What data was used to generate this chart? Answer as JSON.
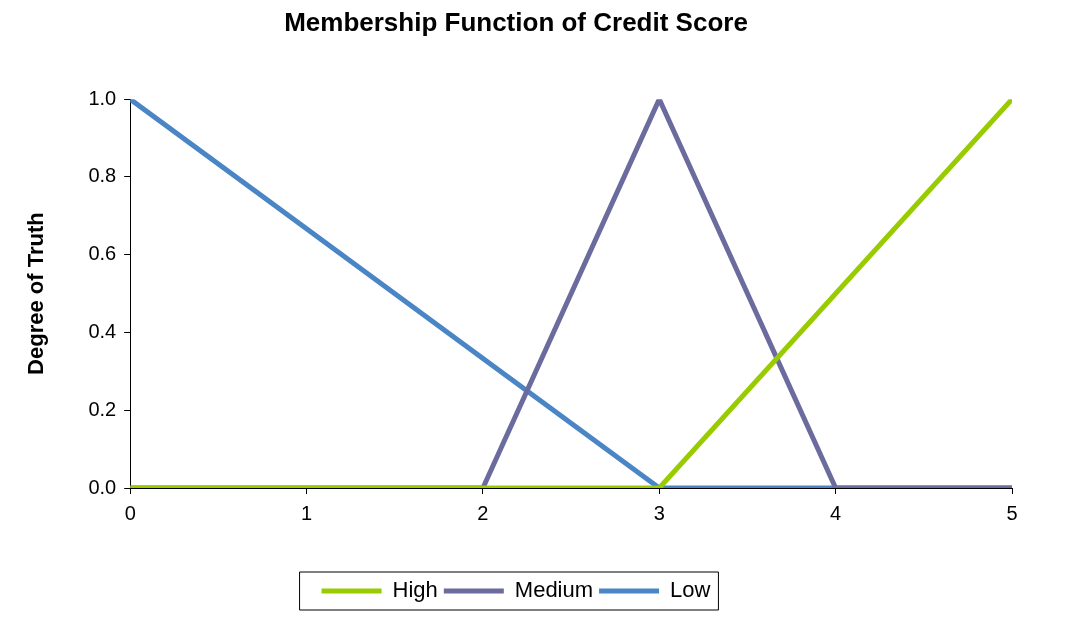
{
  "chart_data": {
    "type": "line",
    "title": "Membership Function of Credit Score",
    "ylabel": "Degree of Truth",
    "xlim": [
      0,
      5
    ],
    "xticks": [
      0,
      1,
      2,
      3,
      4,
      5
    ],
    "ylim": [
      0,
      1
    ],
    "yticks": [
      {
        "value": 0,
        "label": "0.0"
      },
      {
        "value": 0.2,
        "label": "0.2"
      },
      {
        "value": 0.4,
        "label": "0.4"
      },
      {
        "value": 0.6,
        "label": "0.6"
      },
      {
        "value": 0.8,
        "label": "0.8"
      },
      {
        "value": 1,
        "label": "1.0"
      }
    ],
    "grid": false,
    "legend": "bottom",
    "marker": "none",
    "line_style": "solid",
    "series": [
      {
        "name": "High",
        "color": "#99cc00",
        "x": [
          0,
          3,
          5
        ],
        "values": [
          0,
          0,
          1
        ]
      },
      {
        "name": "Medium",
        "color": "#6b6b9e",
        "x": [
          0,
          2,
          3,
          4,
          5
        ],
        "values": [
          0,
          0,
          1,
          0,
          0
        ]
      },
      {
        "name": "Low",
        "color": "#4a86c5",
        "x": [
          0,
          3,
          5
        ],
        "values": [
          1,
          0,
          0
        ]
      }
    ]
  }
}
